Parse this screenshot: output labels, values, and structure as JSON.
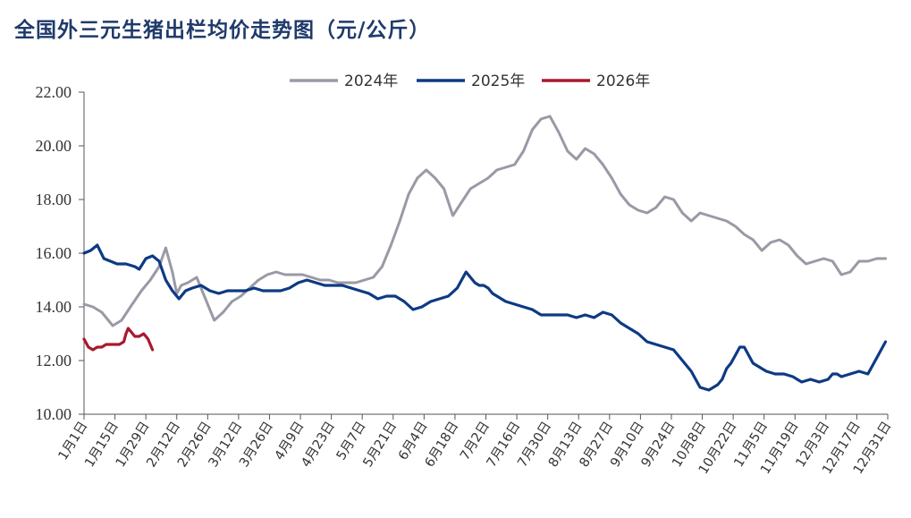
{
  "chart_data": {
    "type": "line",
    "title": "全国外三元生猪出栏均价走势图（元/公斤）",
    "xlabel": "",
    "ylabel": "",
    "ylim": [
      10,
      22
    ],
    "yticks": [
      "10.00",
      "12.00",
      "14.00",
      "16.00",
      "18.00",
      "20.00",
      "22.00"
    ],
    "grid": false,
    "legend_position": "top-center",
    "categories": [
      "1月1日",
      "1月15日",
      "1月29日",
      "2月12日",
      "2月26日",
      "3月12日",
      "3月26日",
      "4月9日",
      "4月23日",
      "5月7日",
      "5月21日",
      "6月4日",
      "6月18日",
      "7月2日",
      "7月16日",
      "7月30日",
      "8月13日",
      "8月27日",
      "9月10日",
      "9月24日",
      "10月8日",
      "10月22日",
      "11月5日",
      "11月19日",
      "12月3日",
      "12月17日",
      "12月31日"
    ],
    "x_unit": "day_of_year",
    "series": [
      {
        "name": "2024年",
        "color": "#9a99a6",
        "x": [
          1,
          5,
          9,
          14,
          18,
          22,
          27,
          31,
          35,
          38,
          41,
          43,
          45,
          48,
          52,
          56,
          60,
          64,
          68,
          72,
          76,
          80,
          84,
          88,
          92,
          96,
          100,
          104,
          108,
          112,
          116,
          120,
          124,
          128,
          132,
          136,
          140,
          144,
          148,
          152,
          156,
          160,
          164,
          168,
          172,
          176,
          180,
          184,
          188,
          192,
          196,
          200,
          204,
          208,
          212,
          216,
          220,
          224,
          228,
          232,
          236,
          240,
          244,
          248,
          252,
          256,
          260,
          264,
          268,
          272,
          276,
          280,
          284,
          288,
          292,
          296,
          300,
          304,
          308,
          312,
          316,
          320,
          324,
          328,
          332,
          336,
          340,
          344,
          348,
          352,
          356,
          360,
          364
        ],
        "values": [
          14.1,
          14.0,
          13.8,
          13.3,
          13.5,
          14.0,
          14.6,
          15.0,
          15.5,
          16.2,
          15.3,
          14.5,
          14.8,
          14.9,
          15.1,
          14.3,
          13.5,
          13.8,
          14.2,
          14.4,
          14.7,
          15.0,
          15.2,
          15.3,
          15.2,
          15.2,
          15.2,
          15.1,
          15.0,
          15.0,
          14.9,
          14.9,
          14.9,
          15.0,
          15.1,
          15.5,
          16.3,
          17.2,
          18.2,
          18.8,
          19.1,
          18.8,
          18.4,
          17.4,
          17.9,
          18.4,
          18.6,
          18.8,
          19.1,
          19.2,
          19.3,
          19.8,
          20.6,
          21.0,
          21.1,
          20.5,
          19.8,
          19.5,
          19.9,
          19.7,
          19.3,
          18.8,
          18.2,
          17.8,
          17.6,
          17.5,
          17.7,
          18.1,
          18.0,
          17.5,
          17.2,
          17.5,
          17.4,
          17.3,
          17.2,
          17.0,
          16.7,
          16.5,
          16.1,
          16.4,
          16.5,
          16.3,
          15.9,
          15.6,
          15.7,
          15.8,
          15.7,
          15.2,
          15.3,
          15.7,
          15.7,
          15.8,
          15.8
        ]
      },
      {
        "name": "2025年",
        "color": "#0d3a84",
        "x": [
          1,
          4,
          7,
          10,
          13,
          16,
          20,
          24,
          26,
          29,
          32,
          35,
          38,
          41,
          44,
          47,
          50,
          54,
          58,
          62,
          66,
          70,
          74,
          78,
          82,
          86,
          90,
          94,
          98,
          102,
          106,
          110,
          114,
          118,
          122,
          126,
          130,
          134,
          138,
          142,
          146,
          150,
          154,
          158,
          162,
          166,
          170,
          174,
          178,
          180,
          182,
          184,
          186,
          188,
          192,
          196,
          200,
          204,
          208,
          212,
          216,
          220,
          224,
          228,
          232,
          236,
          240,
          244,
          248,
          252,
          256,
          260,
          264,
          268,
          272,
          276,
          280,
          284,
          288,
          290,
          292,
          294,
          296,
          298,
          300,
          302,
          304,
          306,
          308,
          310,
          314,
          318,
          322,
          326,
          330,
          334,
          338,
          340,
          342,
          344,
          348,
          352,
          356,
          360,
          362,
          364
        ],
        "values": [
          16.0,
          16.1,
          16.3,
          15.8,
          15.7,
          15.6,
          15.6,
          15.5,
          15.4,
          15.8,
          15.9,
          15.7,
          15.0,
          14.6,
          14.3,
          14.6,
          14.7,
          14.8,
          14.6,
          14.5,
          14.6,
          14.6,
          14.6,
          14.7,
          14.6,
          14.6,
          14.6,
          14.7,
          14.9,
          15.0,
          14.9,
          14.8,
          14.8,
          14.8,
          14.7,
          14.6,
          14.5,
          14.3,
          14.4,
          14.4,
          14.2,
          13.9,
          14.0,
          14.2,
          14.3,
          14.4,
          14.7,
          15.3,
          14.9,
          14.8,
          14.8,
          14.7,
          14.5,
          14.4,
          14.2,
          14.1,
          14.0,
          13.9,
          13.7,
          13.7,
          13.7,
          13.7,
          13.6,
          13.7,
          13.6,
          13.8,
          13.7,
          13.4,
          13.2,
          13.0,
          12.7,
          12.6,
          12.5,
          12.4,
          12.0,
          11.6,
          11.0,
          10.9,
          11.1,
          11.3,
          11.7,
          11.9,
          12.2,
          12.5,
          12.5,
          12.2,
          11.9,
          11.8,
          11.7,
          11.6,
          11.5,
          11.5,
          11.4,
          11.2,
          11.3,
          11.2,
          11.3,
          11.5,
          11.5,
          11.4,
          11.5,
          11.6,
          11.5,
          12.1,
          12.4,
          12.7
        ]
      },
      {
        "name": "2026年",
        "color": "#a8192e",
        "x": [
          1,
          3,
          5,
          7,
          9,
          11,
          13,
          15,
          17,
          19,
          20,
          21,
          22,
          24,
          26,
          28,
          30,
          32
        ],
        "values": [
          12.8,
          12.5,
          12.4,
          12.5,
          12.5,
          12.6,
          12.6,
          12.6,
          12.6,
          12.7,
          13.0,
          13.2,
          13.1,
          12.9,
          12.9,
          13.0,
          12.8,
          12.4
        ]
      }
    ]
  }
}
